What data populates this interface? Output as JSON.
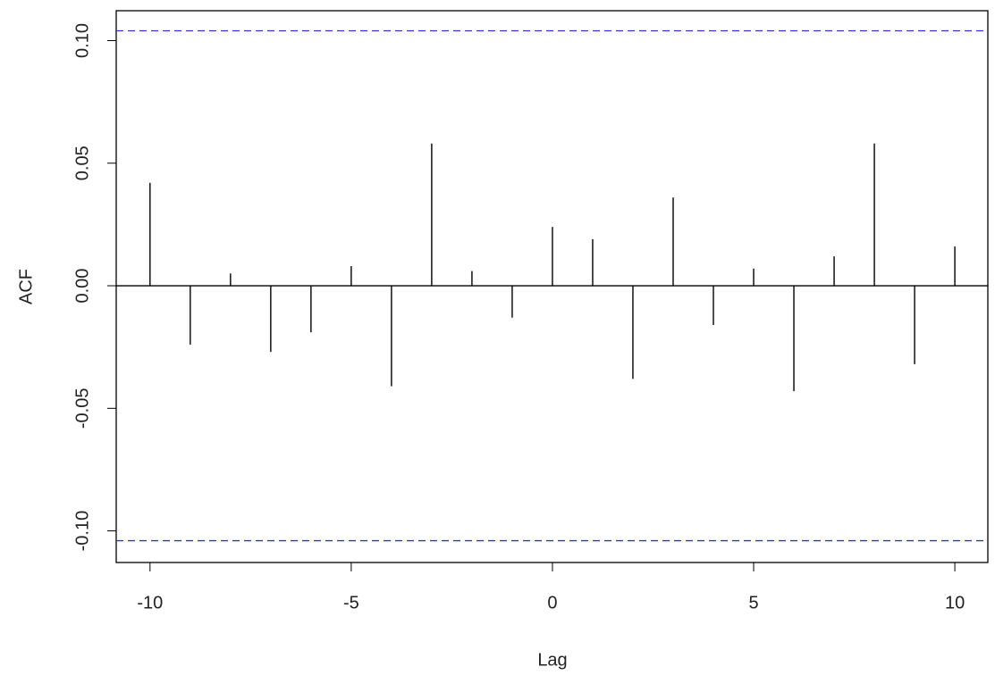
{
  "chart_data": {
    "type": "stem",
    "x_label": "Lag",
    "y_label": "ACF",
    "x": [
      -10,
      -9,
      -8,
      -7,
      -6,
      -5,
      -4,
      -3,
      -2,
      -1,
      0,
      1,
      2,
      3,
      4,
      5,
      6,
      7,
      8,
      9,
      10
    ],
    "values": [
      0.042,
      -0.024,
      0.005,
      -0.027,
      -0.019,
      0.008,
      -0.041,
      0.058,
      0.006,
      -0.013,
      0.024,
      0.019,
      -0.038,
      0.036,
      -0.016,
      0.007,
      -0.043,
      0.012,
      0.058,
      -0.032,
      0.016
    ],
    "color": "#000000",
    "confidence_bounds": {
      "values": [
        0.104,
        -0.104
      ],
      "color": "#3333cc"
    },
    "xlim": [
      -10.84,
      10.82
    ],
    "ylim": [
      -0.1129,
      0.1122
    ],
    "xticks": [
      -10,
      -5,
      0,
      5,
      10
    ],
    "yticks": [
      {
        "value": -0.1,
        "label": "-0.10"
      },
      {
        "value": -0.05,
        "label": "-0.05"
      },
      {
        "value": 0,
        "label": "0.00"
      },
      {
        "value": 0.05,
        "label": "0.05"
      },
      {
        "value": 0.1,
        "label": "0.10"
      }
    ]
  }
}
